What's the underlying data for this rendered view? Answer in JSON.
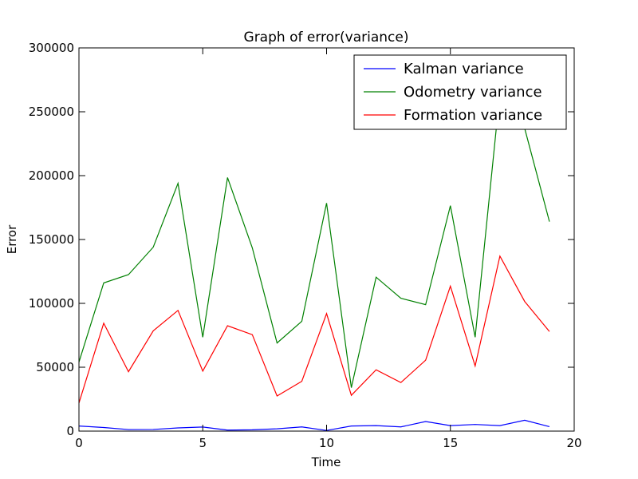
{
  "chart_data": {
    "type": "line",
    "title": "Graph of error(variance)",
    "xlabel": "Time",
    "ylabel": "Error",
    "xlim": [
      0,
      20
    ],
    "ylim": [
      0,
      300000
    ],
    "xticks": [
      0,
      5,
      10,
      15,
      20
    ],
    "yticks": [
      0,
      50000,
      100000,
      150000,
      200000,
      250000,
      300000
    ],
    "grid": false,
    "legend_position": "top-right",
    "x": [
      0,
      1,
      2,
      3,
      4,
      5,
      6,
      7,
      8,
      9,
      10,
      11,
      12,
      13,
      14,
      15,
      16,
      17,
      18,
      19
    ],
    "series": [
      {
        "name": "Kalman variance",
        "color": "#0000ff",
        "values": [
          4000,
          2800,
          1200,
          1300,
          2500,
          3200,
          800,
          1000,
          1800,
          3300,
          500,
          4000,
          4300,
          3300,
          7500,
          4300,
          5200,
          4300,
          8500,
          3500
        ]
      },
      {
        "name": "Odometry variance",
        "color": "#008000",
        "values": [
          54000,
          116000,
          122500,
          144000,
          194000,
          73500,
          198500,
          143500,
          69000,
          86000,
          178500,
          34000,
          120500,
          104000,
          99000,
          176500,
          73500,
          265000,
          237000,
          164000
        ]
      },
      {
        "name": "Formation variance",
        "color": "#ff0000",
        "values": [
          22000,
          84500,
          46500,
          78500,
          94500,
          47000,
          82500,
          75500,
          27500,
          39000,
          92000,
          28000,
          48000,
          38000,
          55500,
          113500,
          51000,
          137000,
          101500,
          78000
        ]
      }
    ]
  }
}
